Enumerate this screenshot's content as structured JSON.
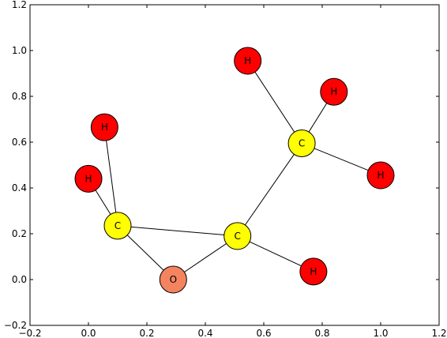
{
  "chart_data": {
    "type": "scatter",
    "title": "",
    "xlabel": "",
    "ylabel": "",
    "xlim": [
      -0.2,
      1.2
    ],
    "ylim": [
      -0.2,
      1.2
    ],
    "xticks": [
      -0.2,
      0.0,
      0.2,
      0.4,
      0.6,
      0.8,
      1.0,
      1.2
    ],
    "yticks": [
      -0.2,
      0.0,
      0.2,
      0.4,
      0.6,
      0.8,
      1.0,
      1.2
    ],
    "xtick_labels": [
      "−0.2",
      "0.0",
      "0.2",
      "0.4",
      "0.6",
      "0.8",
      "1.0",
      "1.2"
    ],
    "ytick_labels": [
      "−0.2",
      "0.0",
      "0.2",
      "0.4",
      "0.6",
      "0.8",
      "1.0",
      "1.2"
    ],
    "grid": false,
    "colors": {
      "C": "#ffff00",
      "O": "#f4845f",
      "H": "#ff0000"
    },
    "nodes": [
      {
        "id": "c1",
        "label": "C",
        "x": 0.1,
        "y": 0.235
      },
      {
        "id": "c2",
        "label": "C",
        "x": 0.51,
        "y": 0.19
      },
      {
        "id": "c3",
        "label": "C",
        "x": 0.73,
        "y": 0.595
      },
      {
        "id": "o1",
        "label": "O",
        "x": 0.29,
        "y": 0.0
      },
      {
        "id": "h1",
        "label": "H",
        "x": 0.055,
        "y": 0.665
      },
      {
        "id": "h2",
        "label": "H",
        "x": 0.0,
        "y": 0.44
      },
      {
        "id": "h3",
        "label": "H",
        "x": 0.545,
        "y": 0.955
      },
      {
        "id": "h4",
        "label": "H",
        "x": 0.84,
        "y": 0.82
      },
      {
        "id": "h5",
        "label": "H",
        "x": 1.0,
        "y": 0.455
      },
      {
        "id": "h6",
        "label": "H",
        "x": 0.77,
        "y": 0.035
      }
    ],
    "edges": [
      [
        "c1",
        "h1"
      ],
      [
        "c1",
        "h2"
      ],
      [
        "c1",
        "c2"
      ],
      [
        "c1",
        "o1"
      ],
      [
        "o1",
        "c2"
      ],
      [
        "c2",
        "c3"
      ],
      [
        "c2",
        "h6"
      ],
      [
        "c3",
        "h3"
      ],
      [
        "c3",
        "h4"
      ],
      [
        "c3",
        "h5"
      ]
    ]
  }
}
